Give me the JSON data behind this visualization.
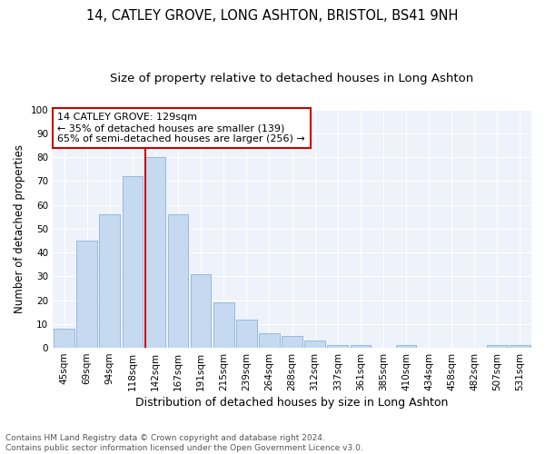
{
  "title": "14, CATLEY GROVE, LONG ASHTON, BRISTOL, BS41 9NH",
  "subtitle": "Size of property relative to detached houses in Long Ashton",
  "xlabel": "Distribution of detached houses by size in Long Ashton",
  "ylabel": "Number of detached properties",
  "bar_color": "#c5d9f0",
  "bar_edge_color": "#8ab4d8",
  "categories": [
    "45sqm",
    "69sqm",
    "94sqm",
    "118sqm",
    "142sqm",
    "167sqm",
    "191sqm",
    "215sqm",
    "239sqm",
    "264sqm",
    "288sqm",
    "312sqm",
    "337sqm",
    "361sqm",
    "385sqm",
    "410sqm",
    "434sqm",
    "458sqm",
    "482sqm",
    "507sqm",
    "531sqm"
  ],
  "values": [
    8,
    45,
    56,
    72,
    80,
    56,
    31,
    19,
    12,
    6,
    5,
    3,
    1,
    1,
    0,
    1,
    0,
    0,
    0,
    1,
    1
  ],
  "vline_x": 3.575,
  "vline_color": "#cc0000",
  "annotation_line1": "14 CATLEY GROVE: 129sqm",
  "annotation_line2": "← 35% of detached houses are smaller (139)",
  "annotation_line3": "65% of semi-detached houses are larger (256) →",
  "annotation_box_color": "#cc0000",
  "ylim": [
    0,
    100
  ],
  "yticks": [
    0,
    10,
    20,
    30,
    40,
    50,
    60,
    70,
    80,
    90,
    100
  ],
  "footer_line1": "Contains HM Land Registry data © Crown copyright and database right 2024.",
  "footer_line2": "Contains public sector information licensed under the Open Government Licence v3.0.",
  "bg_color": "#eef2fa",
  "grid_color": "#d8dfe8",
  "title_fontsize": 10.5,
  "subtitle_fontsize": 9.5,
  "ylabel_fontsize": 8.5,
  "xlabel_fontsize": 9,
  "tick_fontsize": 7.5,
  "ann_fontsize": 8,
  "footer_fontsize": 6.5
}
